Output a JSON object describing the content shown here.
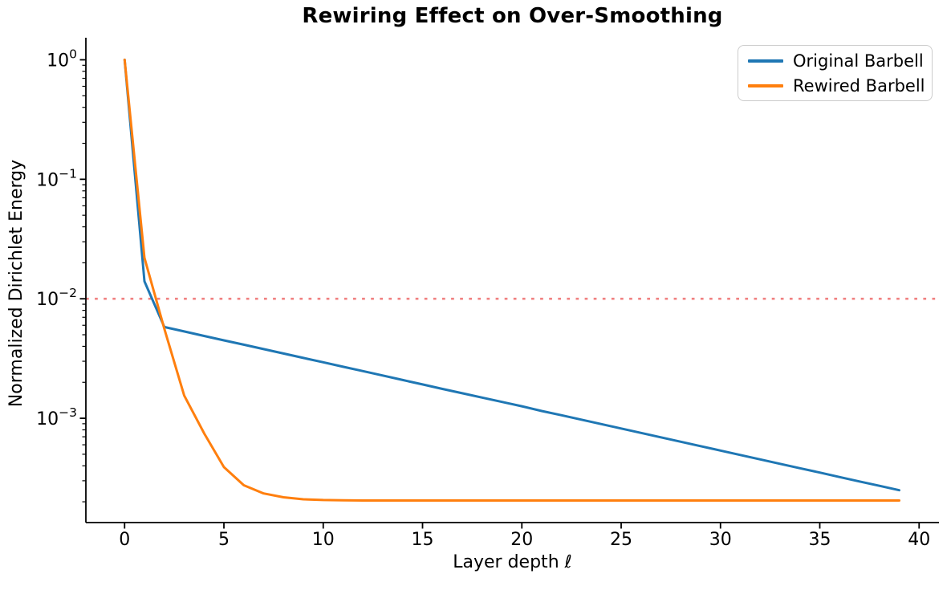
{
  "title": "Rewiring Effect on Over-Smoothing",
  "axes": {
    "xlabel": "Layer depth ℓ",
    "ylabel": "Normalized Dirichlet Energy"
  },
  "legend": {
    "position": "upper right",
    "entries": [
      {
        "label": "Original Barbell",
        "color": "#1f77b4"
      },
      {
        "label": "Rewired Barbell",
        "color": "#ff7f0e"
      }
    ]
  },
  "chart_data": {
    "type": "line",
    "title": "Rewiring Effect on Over-Smoothing",
    "xlabel": "Layer depth ℓ",
    "ylabel": "Normalized Dirichlet Energy",
    "yscale": "log",
    "grid": false,
    "legend_position": "upper right",
    "xlim": [
      -1.95,
      41.0
    ],
    "ylim": [
      0.000134,
      1.53
    ],
    "x_ticks": [
      0,
      5,
      10,
      15,
      20,
      25,
      30,
      35,
      40
    ],
    "y_tick_exponents": [
      0,
      -1,
      -2,
      -3
    ],
    "x": [
      0,
      1,
      2,
      3,
      4,
      5,
      6,
      7,
      8,
      9,
      10,
      11,
      12,
      13,
      14,
      15,
      16,
      17,
      18,
      19,
      20,
      21,
      22,
      23,
      24,
      25,
      26,
      27,
      28,
      29,
      30,
      31,
      32,
      33,
      34,
      35,
      36,
      37,
      38,
      39
    ],
    "series": [
      {
        "name": "Original Barbell",
        "color": "#1f77b4",
        "values": [
          1.0,
          0.014,
          0.0058,
          0.00533,
          0.00489,
          0.00449,
          0.00413,
          0.00379,
          0.00348,
          0.0032,
          0.00294,
          0.0027,
          0.00248,
          0.00228,
          0.00209,
          0.00192,
          0.00176,
          0.00162,
          0.00149,
          0.00137,
          0.00126,
          0.00115,
          0.00106,
          0.000973,
          0.000894,
          0.000821,
          0.000754,
          0.000693,
          0.000636,
          0.000584,
          0.000537,
          0.000493,
          0.000453,
          0.000416,
          0.000382,
          0.000351,
          0.000322,
          0.000296,
          0.000272,
          0.00025
        ]
      },
      {
        "name": "Rewired Barbell",
        "color": "#ff7f0e",
        "values": [
          1.0,
          0.022,
          0.0056,
          0.00155,
          0.00075,
          0.00039,
          0.000275,
          0.000235,
          0.000218,
          0.00021,
          0.000207,
          0.000206,
          0.000205,
          0.000205,
          0.000205,
          0.000205,
          0.000205,
          0.000205,
          0.000205,
          0.000205,
          0.000205,
          0.000205,
          0.000205,
          0.000205,
          0.000205,
          0.000205,
          0.000205,
          0.000205,
          0.000205,
          0.000205,
          0.000205,
          0.000205,
          0.000205,
          0.000205,
          0.000205,
          0.000205,
          0.000205,
          0.000205,
          0.000205,
          0.000205
        ]
      }
    ],
    "threshold_line": {
      "value": 0.01,
      "color": "#f08080",
      "style": "dotted"
    }
  }
}
